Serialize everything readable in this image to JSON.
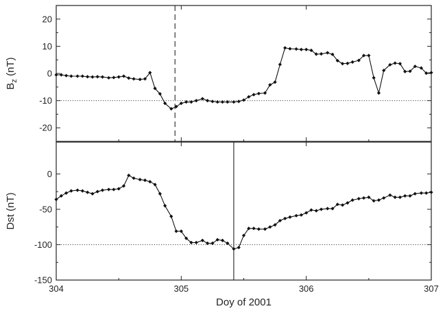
{
  "chart_data": [
    {
      "type": "line",
      "ylabel_main": "B",
      "ylabel_sub": "z",
      "ylabel_unit": "(nT)",
      "ylim": [
        -25,
        25
      ],
      "yticks": [
        -20,
        -10,
        0,
        10,
        20
      ],
      "xlim": [
        304,
        307
      ],
      "reference_line_y": -10,
      "marker_line_x": 304.95,
      "marker_style": "dashed",
      "grid": false,
      "x": [
        304.0,
        304.04,
        304.08,
        304.12,
        304.17,
        304.21,
        304.25,
        304.29,
        304.33,
        304.37,
        304.42,
        304.46,
        304.5,
        304.54,
        304.58,
        304.62,
        304.67,
        304.71,
        304.75,
        304.79,
        304.83,
        304.87,
        304.92,
        304.96,
        305.0,
        305.04,
        305.08,
        305.12,
        305.17,
        305.21,
        305.25,
        305.29,
        305.33,
        305.37,
        305.42,
        305.46,
        305.5,
        305.54,
        305.58,
        305.62,
        305.67,
        305.71,
        305.75,
        305.79,
        305.83,
        305.87,
        305.92,
        305.96,
        306.0,
        306.04,
        306.08,
        306.12,
        306.17,
        306.21,
        306.25,
        306.29,
        306.33,
        306.37,
        306.42,
        306.46,
        306.5,
        306.54,
        306.58,
        306.62,
        306.67,
        306.71,
        306.75,
        306.79,
        306.83,
        306.87,
        306.92,
        306.96,
        307.0
      ],
      "values": [
        -0.5,
        -0.5,
        -0.8,
        -1.0,
        -1.0,
        -1.0,
        -1.2,
        -1.3,
        -1.2,
        -1.3,
        -1.6,
        -1.5,
        -1.3,
        -1.0,
        -1.7,
        -2.0,
        -2.2,
        -2.0,
        0.3,
        -5.5,
        -7.5,
        -11.0,
        -13.0,
        -12.2,
        -11.0,
        -10.5,
        -10.5,
        -10.0,
        -9.3,
        -10.0,
        -10.3,
        -10.5,
        -10.5,
        -10.5,
        -10.5,
        -10.3,
        -9.8,
        -8.6,
        -7.8,
        -7.4,
        -7.2,
        -4.2,
        -3.2,
        3.3,
        9.4,
        9.1,
        9.0,
        8.8,
        8.8,
        8.5,
        7.1,
        7.2,
        7.6,
        7.0,
        4.7,
        3.6,
        3.7,
        4.2,
        4.8,
        6.6,
        6.6,
        -1.6,
        -7.2,
        1.1,
        3.2,
        3.8,
        3.6,
        0.7,
        0.8,
        2.6,
        2.0,
        0.1,
        0.3
      ]
    },
    {
      "type": "line",
      "ylabel": "Dst (nT)",
      "xlabel": "Doy of 2001",
      "ylim": [
        -150,
        45
      ],
      "yticks": [
        -150,
        -100,
        -50,
        0
      ],
      "xlim": [
        304,
        307
      ],
      "xticks": [
        304,
        305,
        306,
        307
      ],
      "reference_line_y": -100,
      "marker_line_x": 305.42,
      "marker_style": "solid",
      "grid": false,
      "x": [
        304.0,
        304.04,
        304.08,
        304.12,
        304.17,
        304.21,
        304.25,
        304.29,
        304.33,
        304.37,
        304.42,
        304.46,
        304.5,
        304.54,
        304.58,
        304.62,
        304.67,
        304.71,
        304.75,
        304.79,
        304.83,
        304.87,
        304.92,
        304.96,
        305.0,
        305.04,
        305.08,
        305.12,
        305.17,
        305.21,
        305.25,
        305.29,
        305.33,
        305.37,
        305.42,
        305.46,
        305.5,
        305.54,
        305.58,
        305.62,
        305.67,
        305.71,
        305.75,
        305.79,
        305.83,
        305.87,
        305.92,
        305.96,
        306.0,
        306.04,
        306.08,
        306.12,
        306.17,
        306.21,
        306.25,
        306.29,
        306.33,
        306.37,
        306.42,
        306.46,
        306.5,
        306.54,
        306.58,
        306.62,
        306.67,
        306.71,
        306.75,
        306.79,
        306.83,
        306.87,
        306.92,
        306.96,
        307.0
      ],
      "values": [
        -36,
        -31,
        -27,
        -24,
        -23,
        -24,
        -26,
        -28,
        -25,
        -23,
        -22,
        -22,
        -21,
        -17,
        -2,
        -6,
        -8,
        -9,
        -11,
        -15,
        -28,
        -45,
        -60,
        -81,
        -81,
        -91,
        -97,
        -97,
        -94,
        -98,
        -98,
        -93,
        -94,
        -98,
        -106,
        -104,
        -87,
        -77,
        -77,
        -78,
        -78,
        -75,
        -72,
        -66,
        -63,
        -61,
        -59,
        -58,
        -55,
        -51,
        -52,
        -50,
        -49,
        -49,
        -43,
        -44,
        -41,
        -37,
        -35,
        -34,
        -33,
        -38,
        -37,
        -34,
        -30,
        -33,
        -33,
        -31,
        -31,
        -28,
        -27,
        -27,
        -26
      ]
    }
  ]
}
